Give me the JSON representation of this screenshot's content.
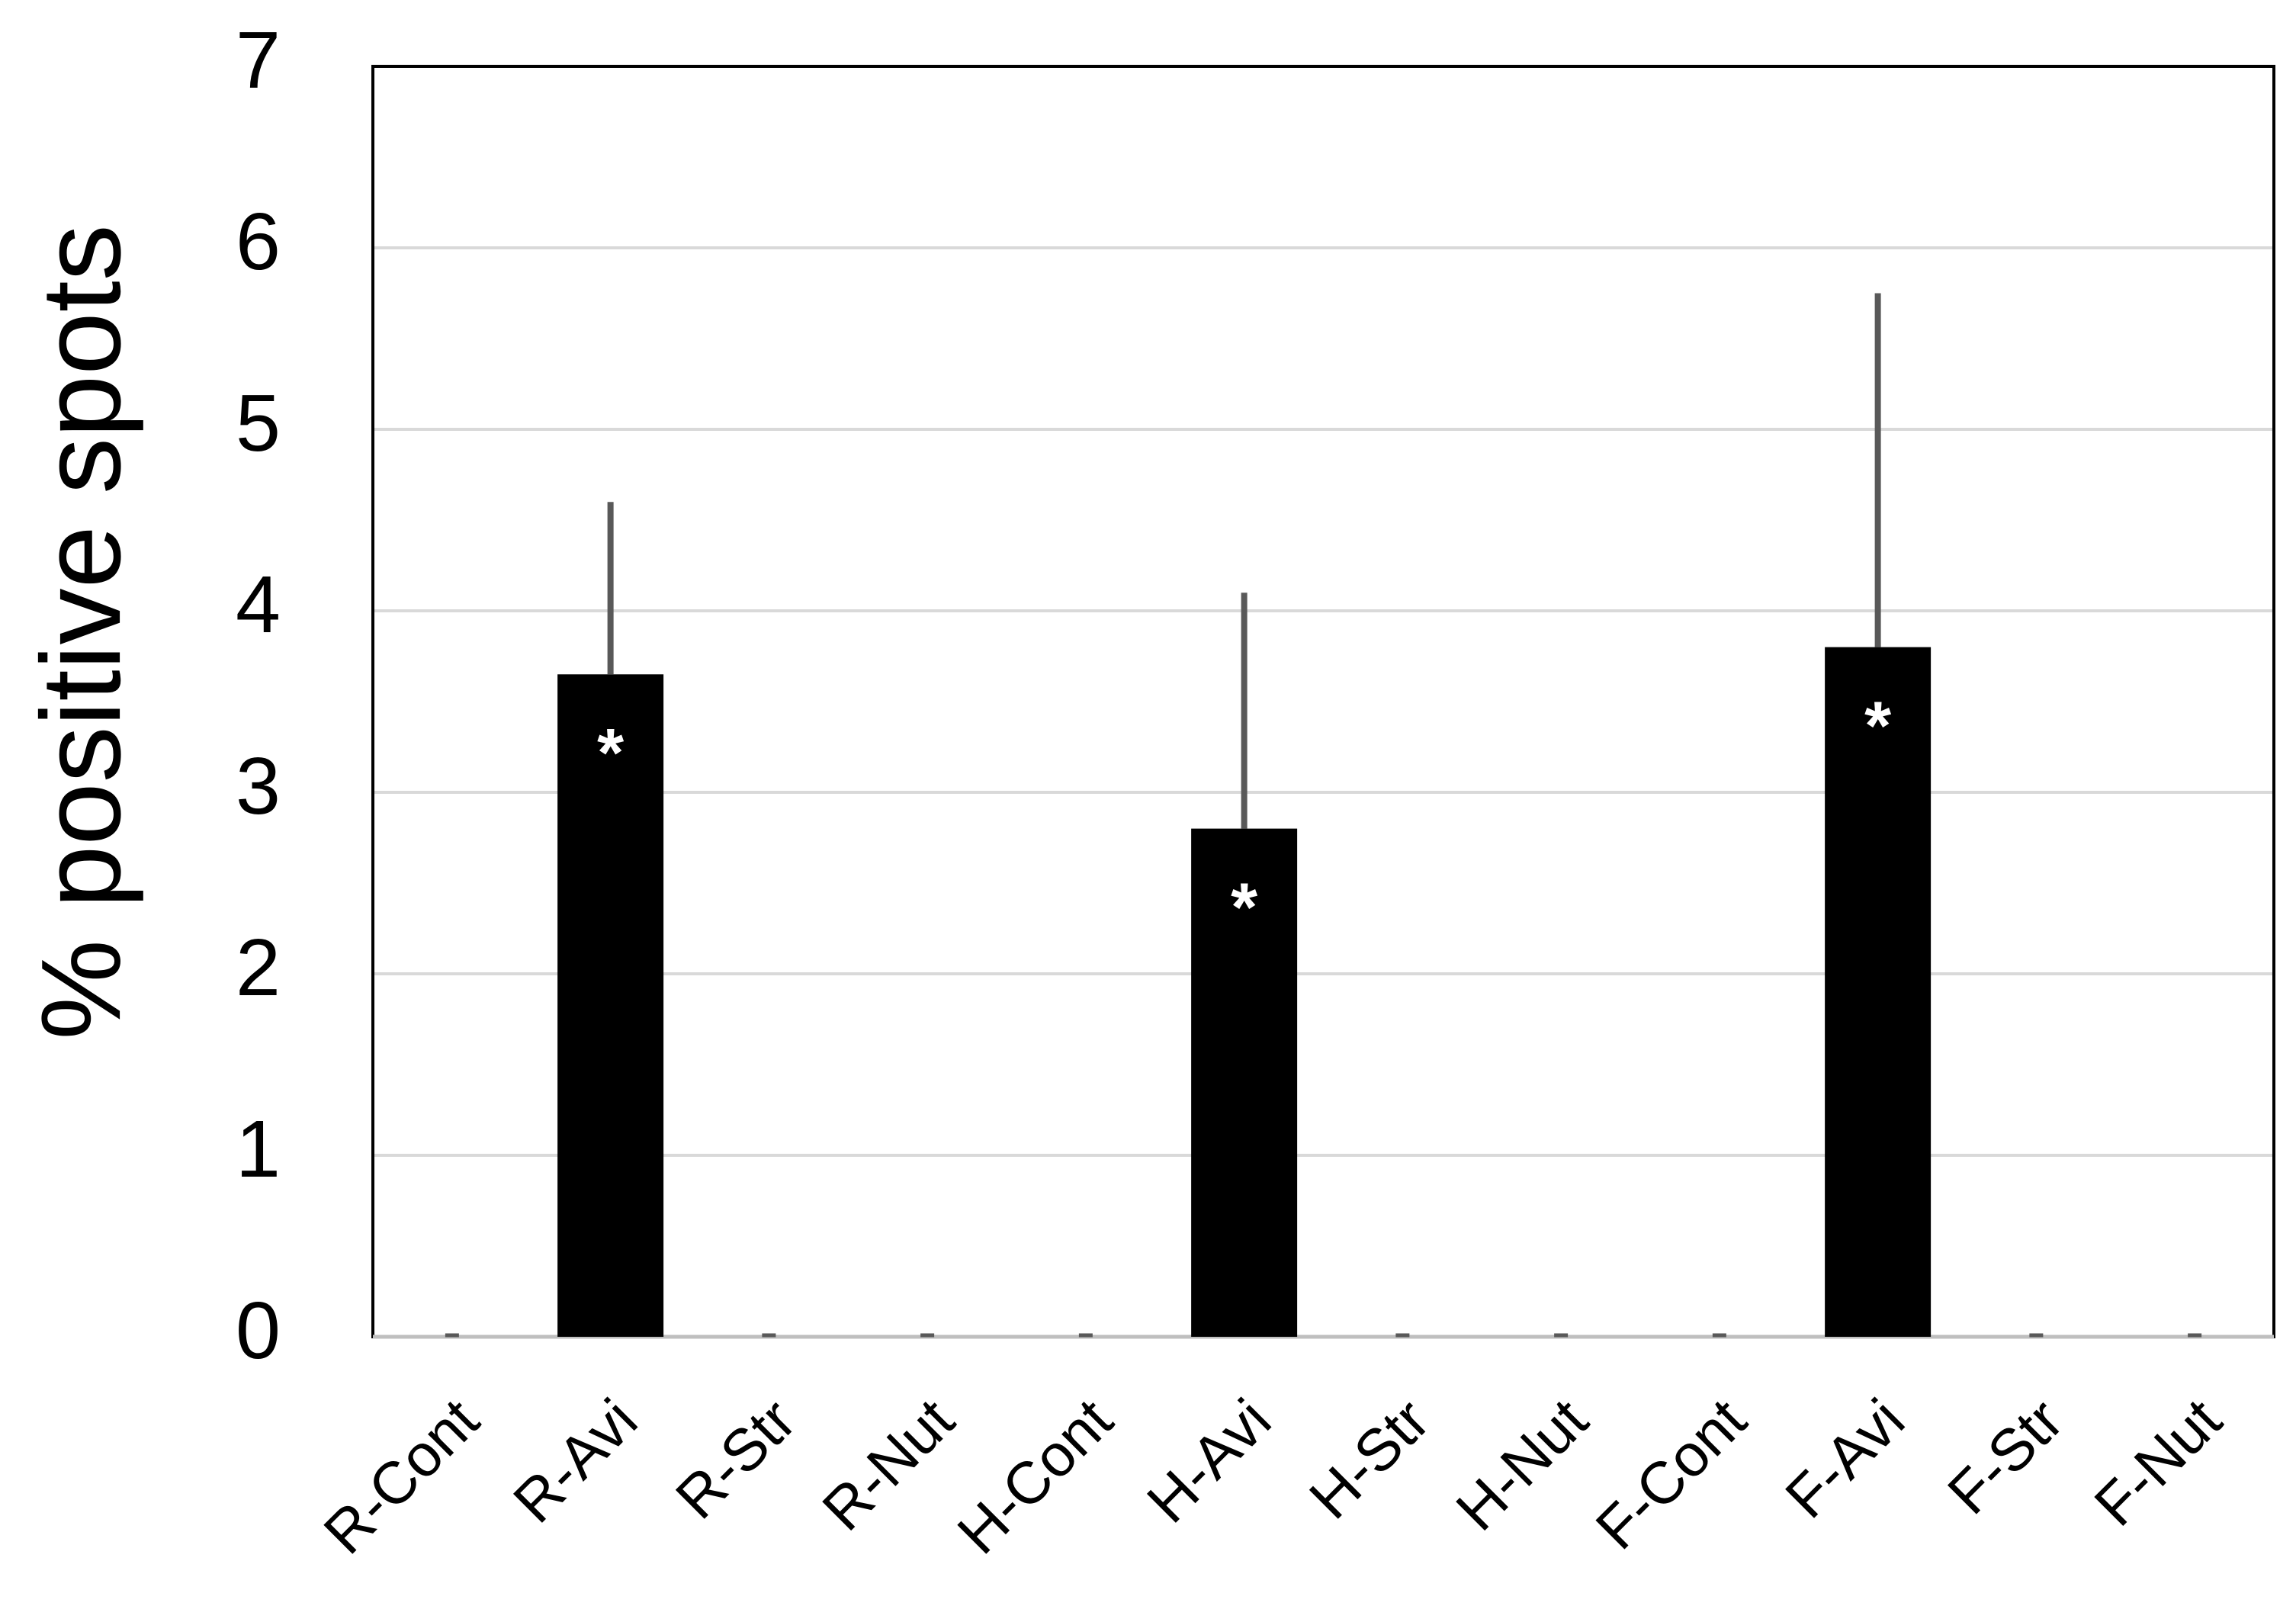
{
  "chart_data": {
    "type": "bar",
    "y_label": "% positive spots",
    "categories": [
      "R-Cont",
      "R-Avi",
      "R-Str",
      "R-Nut",
      "H-Cont",
      "H-Avi",
      "H-Str",
      "H-Nut",
      "F-Cont",
      "F-Avi",
      "F-Str",
      "F-Nut"
    ],
    "values": [
      0,
      3.65,
      0,
      0,
      0,
      2.8,
      0,
      0,
      0,
      3.8,
      0,
      0
    ],
    "errors": [
      0,
      0.95,
      0,
      0,
      0,
      1.3,
      0,
      0,
      0,
      1.95,
      0,
      0
    ],
    "significance": [
      null,
      "*",
      null,
      null,
      null,
      "*",
      null,
      null,
      null,
      "*",
      null,
      null
    ],
    "color": "#000000",
    "error_color": "#595959",
    "ylim": [
      0,
      7
    ],
    "yticks": [
      0,
      1,
      2,
      3,
      4,
      5,
      6,
      7
    ],
    "grid": true
  }
}
